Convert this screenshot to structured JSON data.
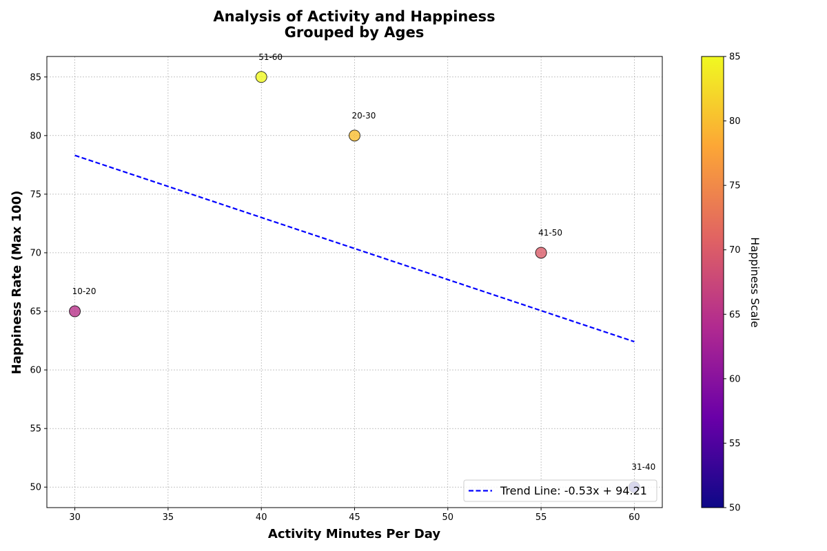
{
  "chart_data": {
    "type": "scatter",
    "title": [
      "Analysis of Activity and Happiness",
      "Grouped by Ages"
    ],
    "xlabel": "Activity Minutes Per Day",
    "ylabel": "Happiness Rate (Max 100)",
    "xlim": [
      28.5,
      61.5
    ],
    "ylim": [
      48.25,
      86.75
    ],
    "xticks": [
      30,
      35,
      40,
      45,
      50,
      55,
      60
    ],
    "yticks": [
      50,
      55,
      60,
      65,
      70,
      75,
      80,
      85
    ],
    "grid": true,
    "points": [
      {
        "label": "10-20",
        "x": 30,
        "y": 65
      },
      {
        "label": "20-30",
        "x": 45,
        "y": 80
      },
      {
        "label": "31-40",
        "x": 60,
        "y": 50
      },
      {
        "label": "41-50",
        "x": 55,
        "y": 70
      },
      {
        "label": "51-60",
        "x": 40,
        "y": 85
      }
    ],
    "trend_line": {
      "slope": -0.53,
      "intercept": 94.21,
      "x_range": [
        30,
        60
      ],
      "color": "#0000ff",
      "style": "dashed"
    },
    "legend": {
      "label": "Trend Line: -0.53x + 94.21",
      "position": "lower right"
    },
    "colorbar": {
      "label": "Happiness Scale",
      "range": [
        50,
        85
      ],
      "ticks": [
        50,
        55,
        60,
        65,
        70,
        75,
        80,
        85
      ],
      "colormap": "plasma",
      "colors": [
        "#0d0887",
        "#6a00a8",
        "#b12a90",
        "#e16462",
        "#fca636",
        "#f0f921"
      ]
    }
  }
}
